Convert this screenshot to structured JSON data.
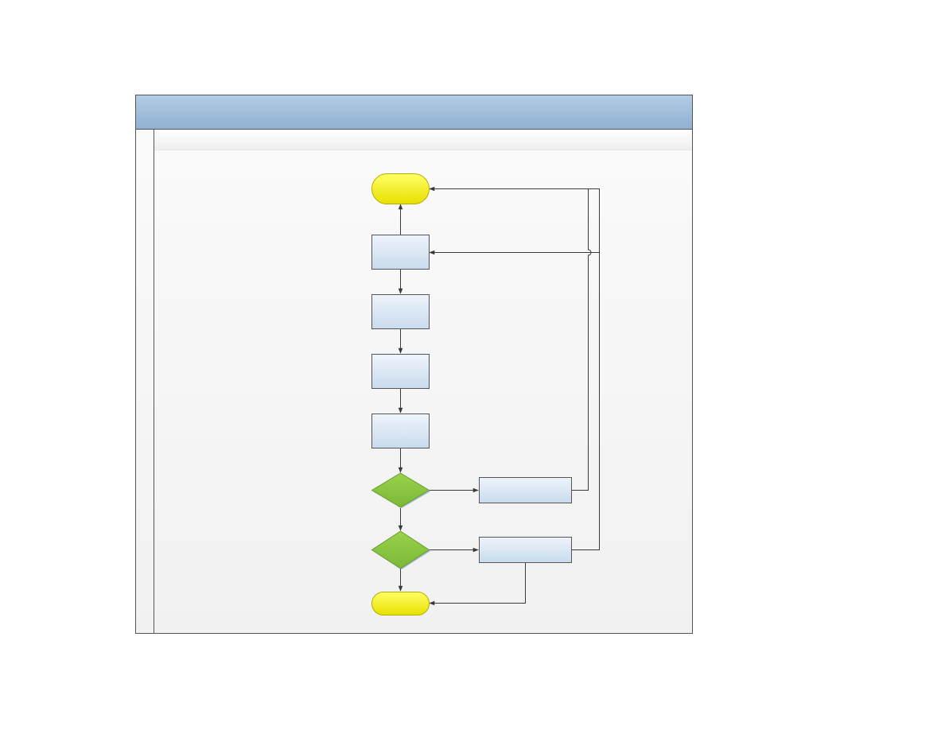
{
  "pool": {
    "title": "",
    "lane_label": "",
    "lane_header": ""
  },
  "nodes": {
    "start": {
      "label": "",
      "shape": "terminator"
    },
    "step_1": {
      "label": "",
      "shape": "process"
    },
    "step_2": {
      "label": "",
      "shape": "process"
    },
    "step_3": {
      "label": "",
      "shape": "process"
    },
    "step_4": {
      "label": "",
      "shape": "process"
    },
    "decision_1": {
      "label": "",
      "shape": "decision"
    },
    "decision_2": {
      "label": "",
      "shape": "decision"
    },
    "action_1": {
      "label": "",
      "shape": "process"
    },
    "action_2": {
      "label": "",
      "shape": "process"
    },
    "end": {
      "label": "",
      "shape": "terminator"
    }
  },
  "edges": [
    {
      "from": "step_1",
      "to": "start"
    },
    {
      "from": "step_1",
      "to": "step_2"
    },
    {
      "from": "step_2",
      "to": "step_3"
    },
    {
      "from": "step_3",
      "to": "step_4"
    },
    {
      "from": "step_4",
      "to": "decision_1"
    },
    {
      "from": "decision_1",
      "to": "decision_2"
    },
    {
      "from": "decision_1",
      "to": "action_1"
    },
    {
      "from": "decision_2",
      "to": "action_2"
    },
    {
      "from": "decision_2",
      "to": "end"
    },
    {
      "from": "action_1",
      "to": "start"
    },
    {
      "from": "action_2",
      "to": "step_1"
    },
    {
      "from": "action_2",
      "to": "end"
    }
  ],
  "colors": {
    "pool_header": "#9dbbd9",
    "terminator_fill": "#f5f000",
    "process_fill": "#d6e4f1",
    "decision_fill": "#8dc63f",
    "connector": "#3a3a3a",
    "border": "#555555"
  }
}
